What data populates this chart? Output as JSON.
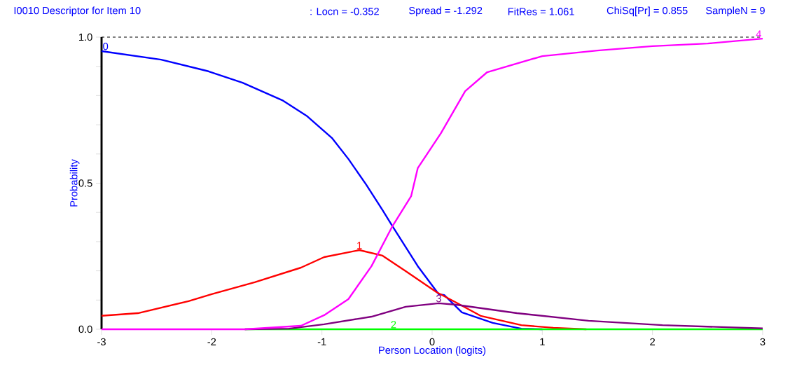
{
  "chart_data": {
    "type": "line",
    "title": "I0010  Descriptor for Item 10",
    "annotations": [
      ": Locn = -0.352",
      "Spread = -1.292",
      "FitRes = 1.061",
      "ChiSq[Pr] = 0.855",
      "SampleN = 9"
    ],
    "xlabel": "Person Location (logits)",
    "ylabel": "Probability",
    "xlim": [
      -3,
      3
    ],
    "ylim": [
      0,
      1
    ],
    "xticks": [
      -3,
      -2,
      -1,
      0,
      1,
      2,
      3
    ],
    "yticks": [
      {
        "value": 0,
        "label": "0.0"
      },
      {
        "value": 0.1,
        "label": null
      },
      {
        "value": 0.2,
        "label": null
      },
      {
        "value": 0.3,
        "label": null
      },
      {
        "value": 0.4,
        "label": null
      },
      {
        "value": 0.5,
        "label": "0.5"
      },
      {
        "value": 0.6,
        "label": null
      },
      {
        "value": 0.7,
        "label": null
      },
      {
        "value": 0.8,
        "label": null
      },
      {
        "value": 0.9,
        "label": null
      },
      {
        "value": 1.0,
        "label": "1.0"
      }
    ],
    "ref_lines": [
      {
        "axis": "y",
        "value": 1.0,
        "label": null,
        "color": "#000000",
        "line_style": "dashed"
      }
    ],
    "grid": false,
    "marker": "none",
    "line_style": "solid",
    "series": [
      {
        "name": "0",
        "color": "#0000ff",
        "x": [
          -3,
          -2.46,
          -2.03,
          -1.72,
          -1.36,
          -1.14,
          -0.91,
          -0.76,
          -0.6,
          -0.45,
          -0.36,
          -0.13,
          0.06,
          0.11,
          0.27,
          0.55,
          0.81,
          1.0
        ],
        "values": [
          0.952,
          0.923,
          0.883,
          0.844,
          0.784,
          0.731,
          0.655,
          0.583,
          0.496,
          0.408,
          0.353,
          0.216,
          0.12,
          0.117,
          0.058,
          0.022,
          0.002,
          0.0
        ]
      },
      {
        "name": "1",
        "color": "#ff0000",
        "x": [
          -3,
          -2.67,
          -2.21,
          -2.0,
          -1.61,
          -1.19,
          -0.98,
          -0.66,
          -0.45,
          -0.24,
          0.04,
          0.22,
          0.44,
          0.81,
          1.1,
          1.4
        ],
        "values": [
          0.046,
          0.055,
          0.096,
          0.12,
          0.161,
          0.211,
          0.247,
          0.271,
          0.252,
          0.199,
          0.127,
          0.091,
          0.046,
          0.014,
          0.005,
          0.0
        ]
      },
      {
        "name": "2",
        "color": "#00ff00",
        "x": [
          -1.7,
          -0.35,
          3
        ],
        "values": [
          0,
          0,
          0
        ]
      },
      {
        "name": "3",
        "color": "#800080",
        "x": [
          -1.7,
          -1.3,
          -0.98,
          -0.55,
          -0.24,
          0.06,
          0.22,
          0.77,
          1.42,
          2.09,
          3.0
        ],
        "values": [
          0.0,
          0.002,
          0.017,
          0.043,
          0.077,
          0.089,
          0.084,
          0.055,
          0.029,
          0.014,
          0.003
        ]
      },
      {
        "name": "4",
        "color": "#ff00ff",
        "x": [
          -3,
          -1.7,
          -1.19,
          -0.98,
          -0.76,
          -0.55,
          -0.36,
          -0.19,
          -0.13,
          0.08,
          0.3,
          0.5,
          1.0,
          1.5,
          2.0,
          2.5,
          3.0
        ],
        "values": [
          0,
          0,
          0.012,
          0.048,
          0.103,
          0.216,
          0.353,
          0.456,
          0.552,
          0.671,
          0.815,
          0.88,
          0.935,
          0.954,
          0.969,
          0.978,
          0.995
        ]
      }
    ]
  }
}
